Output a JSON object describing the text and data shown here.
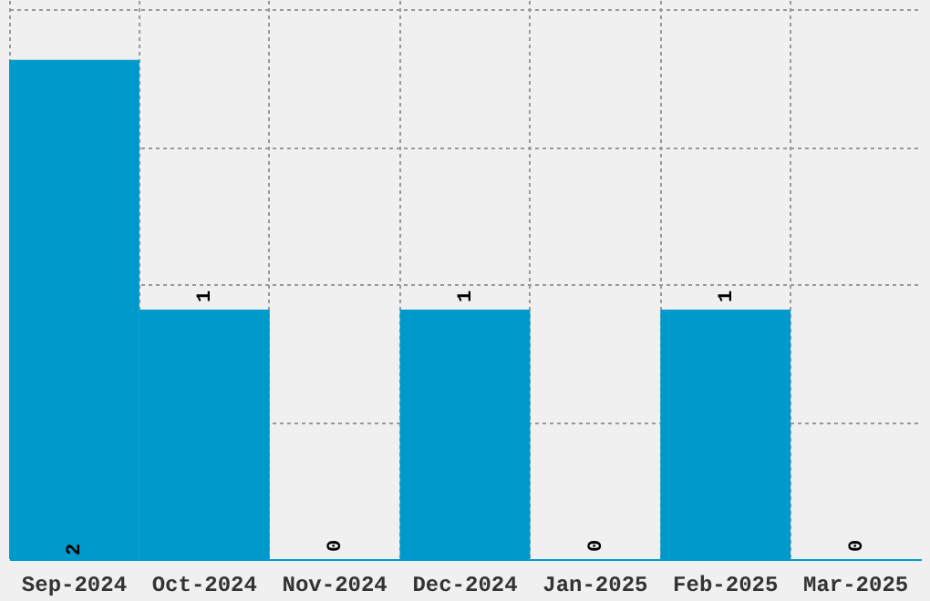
{
  "chart_data": {
    "type": "bar",
    "categories": [
      "Sep-2024",
      "Oct-2024",
      "Nov-2024",
      "Dec-2024",
      "Jan-2025",
      "Feb-2025",
      "Mar-2025"
    ],
    "values": [
      2,
      1,
      0,
      1,
      0,
      1,
      0
    ],
    "color": "#0099cc",
    "data_labels": true,
    "ylim": [
      0,
      2.24
    ],
    "yticks": [
      {
        "value": 0.55,
        "label": null
      },
      {
        "value": 1.1,
        "label": null
      },
      {
        "value": 1.65,
        "label": null
      },
      {
        "value": 2.2,
        "label": null
      }
    ],
    "grid": true,
    "tick_labels": "x"
  }
}
